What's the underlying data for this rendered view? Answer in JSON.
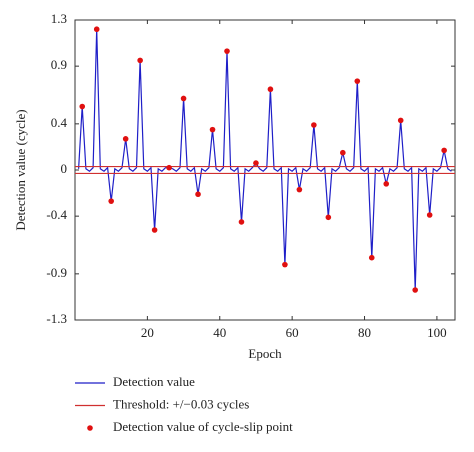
{
  "chart_data": {
    "type": "line",
    "xlabel": "Epoch",
    "ylabel": "Detection value (cycle)",
    "xlim": [
      0,
      105
    ],
    "xticks": [
      20,
      40,
      60,
      80,
      100
    ],
    "ylim": [
      -1.3,
      1.3
    ],
    "yticks": [
      1.3,
      0.9,
      0.4,
      0,
      -0.4,
      -0.9,
      -1.3
    ],
    "legend": "below",
    "series": [
      {
        "name": "Detection value",
        "color": "#1f1fc8",
        "style": "line",
        "x": [
          1,
          2,
          3,
          4,
          5,
          6,
          7,
          8,
          9,
          10,
          11,
          12,
          13,
          14,
          15,
          16,
          17,
          18,
          19,
          20,
          21,
          22,
          23,
          24,
          25,
          26,
          27,
          28,
          29,
          30,
          31,
          32,
          33,
          34,
          35,
          36,
          37,
          38,
          39,
          40,
          41,
          42,
          43,
          44,
          45,
          46,
          47,
          48,
          49,
          50,
          51,
          52,
          53,
          54,
          55,
          56,
          57,
          58,
          59,
          60,
          61,
          62,
          63,
          64,
          65,
          66,
          67,
          68,
          69,
          70,
          71,
          72,
          73,
          74,
          75,
          76,
          77,
          78,
          79,
          80,
          81,
          82,
          83,
          84,
          85,
          86,
          87,
          88,
          89,
          90,
          91,
          92,
          93,
          94,
          95,
          96,
          97,
          98,
          99,
          100,
          101,
          102,
          103,
          104
        ],
        "values": [
          0.01,
          0.55,
          0.01,
          -0.01,
          0.02,
          1.22,
          0.01,
          -0.01,
          0.02,
          -0.27,
          0.01,
          -0.01,
          0.02,
          0.27,
          0.01,
          -0.01,
          0.02,
          0.95,
          0.01,
          -0.01,
          0.02,
          -0.52,
          0.01,
          -0.01,
          0.02,
          0.02,
          0.01,
          -0.01,
          0.02,
          0.62,
          0.01,
          -0.01,
          0.02,
          -0.21,
          0.01,
          -0.01,
          0.02,
          0.35,
          0.01,
          -0.01,
          0.02,
          1.03,
          0.01,
          -0.01,
          0.02,
          -0.45,
          0.01,
          -0.01,
          0.02,
          0.06,
          0.01,
          -0.01,
          0.02,
          0.7,
          0.01,
          -0.01,
          0.02,
          -0.82,
          0.01,
          -0.01,
          0.02,
          -0.17,
          0.01,
          -0.01,
          0.02,
          0.39,
          0.01,
          -0.01,
          0.02,
          -0.41,
          0.01,
          -0.01,
          0.02,
          0.15,
          0.01,
          -0.01,
          0.02,
          0.77,
          0.01,
          -0.01,
          0.02,
          -0.76,
          0.01,
          -0.01,
          0.02,
          -0.12,
          0.01,
          -0.01,
          0.02,
          0.43,
          0.01,
          -0.01,
          0.02,
          -1.04,
          0.01,
          -0.01,
          0.02,
          -0.39,
          0.01,
          -0.01,
          0.02,
          0.17,
          0.01,
          -0.01
        ]
      },
      {
        "name": "Threshold: +/−0.03 cycles",
        "color": "#d03030",
        "style": "hline",
        "values": [
          0.03,
          -0.03
        ]
      },
      {
        "name": "Detection value of cycle-slip point",
        "color": "#e01010",
        "style": "dots",
        "x": [
          2,
          6,
          10,
          14,
          18,
          22,
          26,
          30,
          34,
          38,
          42,
          46,
          50,
          54,
          58,
          62,
          66,
          70,
          74,
          78,
          82,
          86,
          90,
          94,
          98,
          102
        ],
        "values": [
          0.55,
          1.22,
          -0.27,
          0.27,
          0.95,
          -0.52,
          0.02,
          0.62,
          -0.21,
          0.35,
          1.03,
          -0.45,
          0.06,
          0.7,
          -0.82,
          -0.17,
          0.39,
          -0.41,
          0.15,
          0.77,
          -0.76,
          -0.12,
          0.43,
          -1.04,
          -0.39,
          0.17
        ]
      }
    ]
  }
}
